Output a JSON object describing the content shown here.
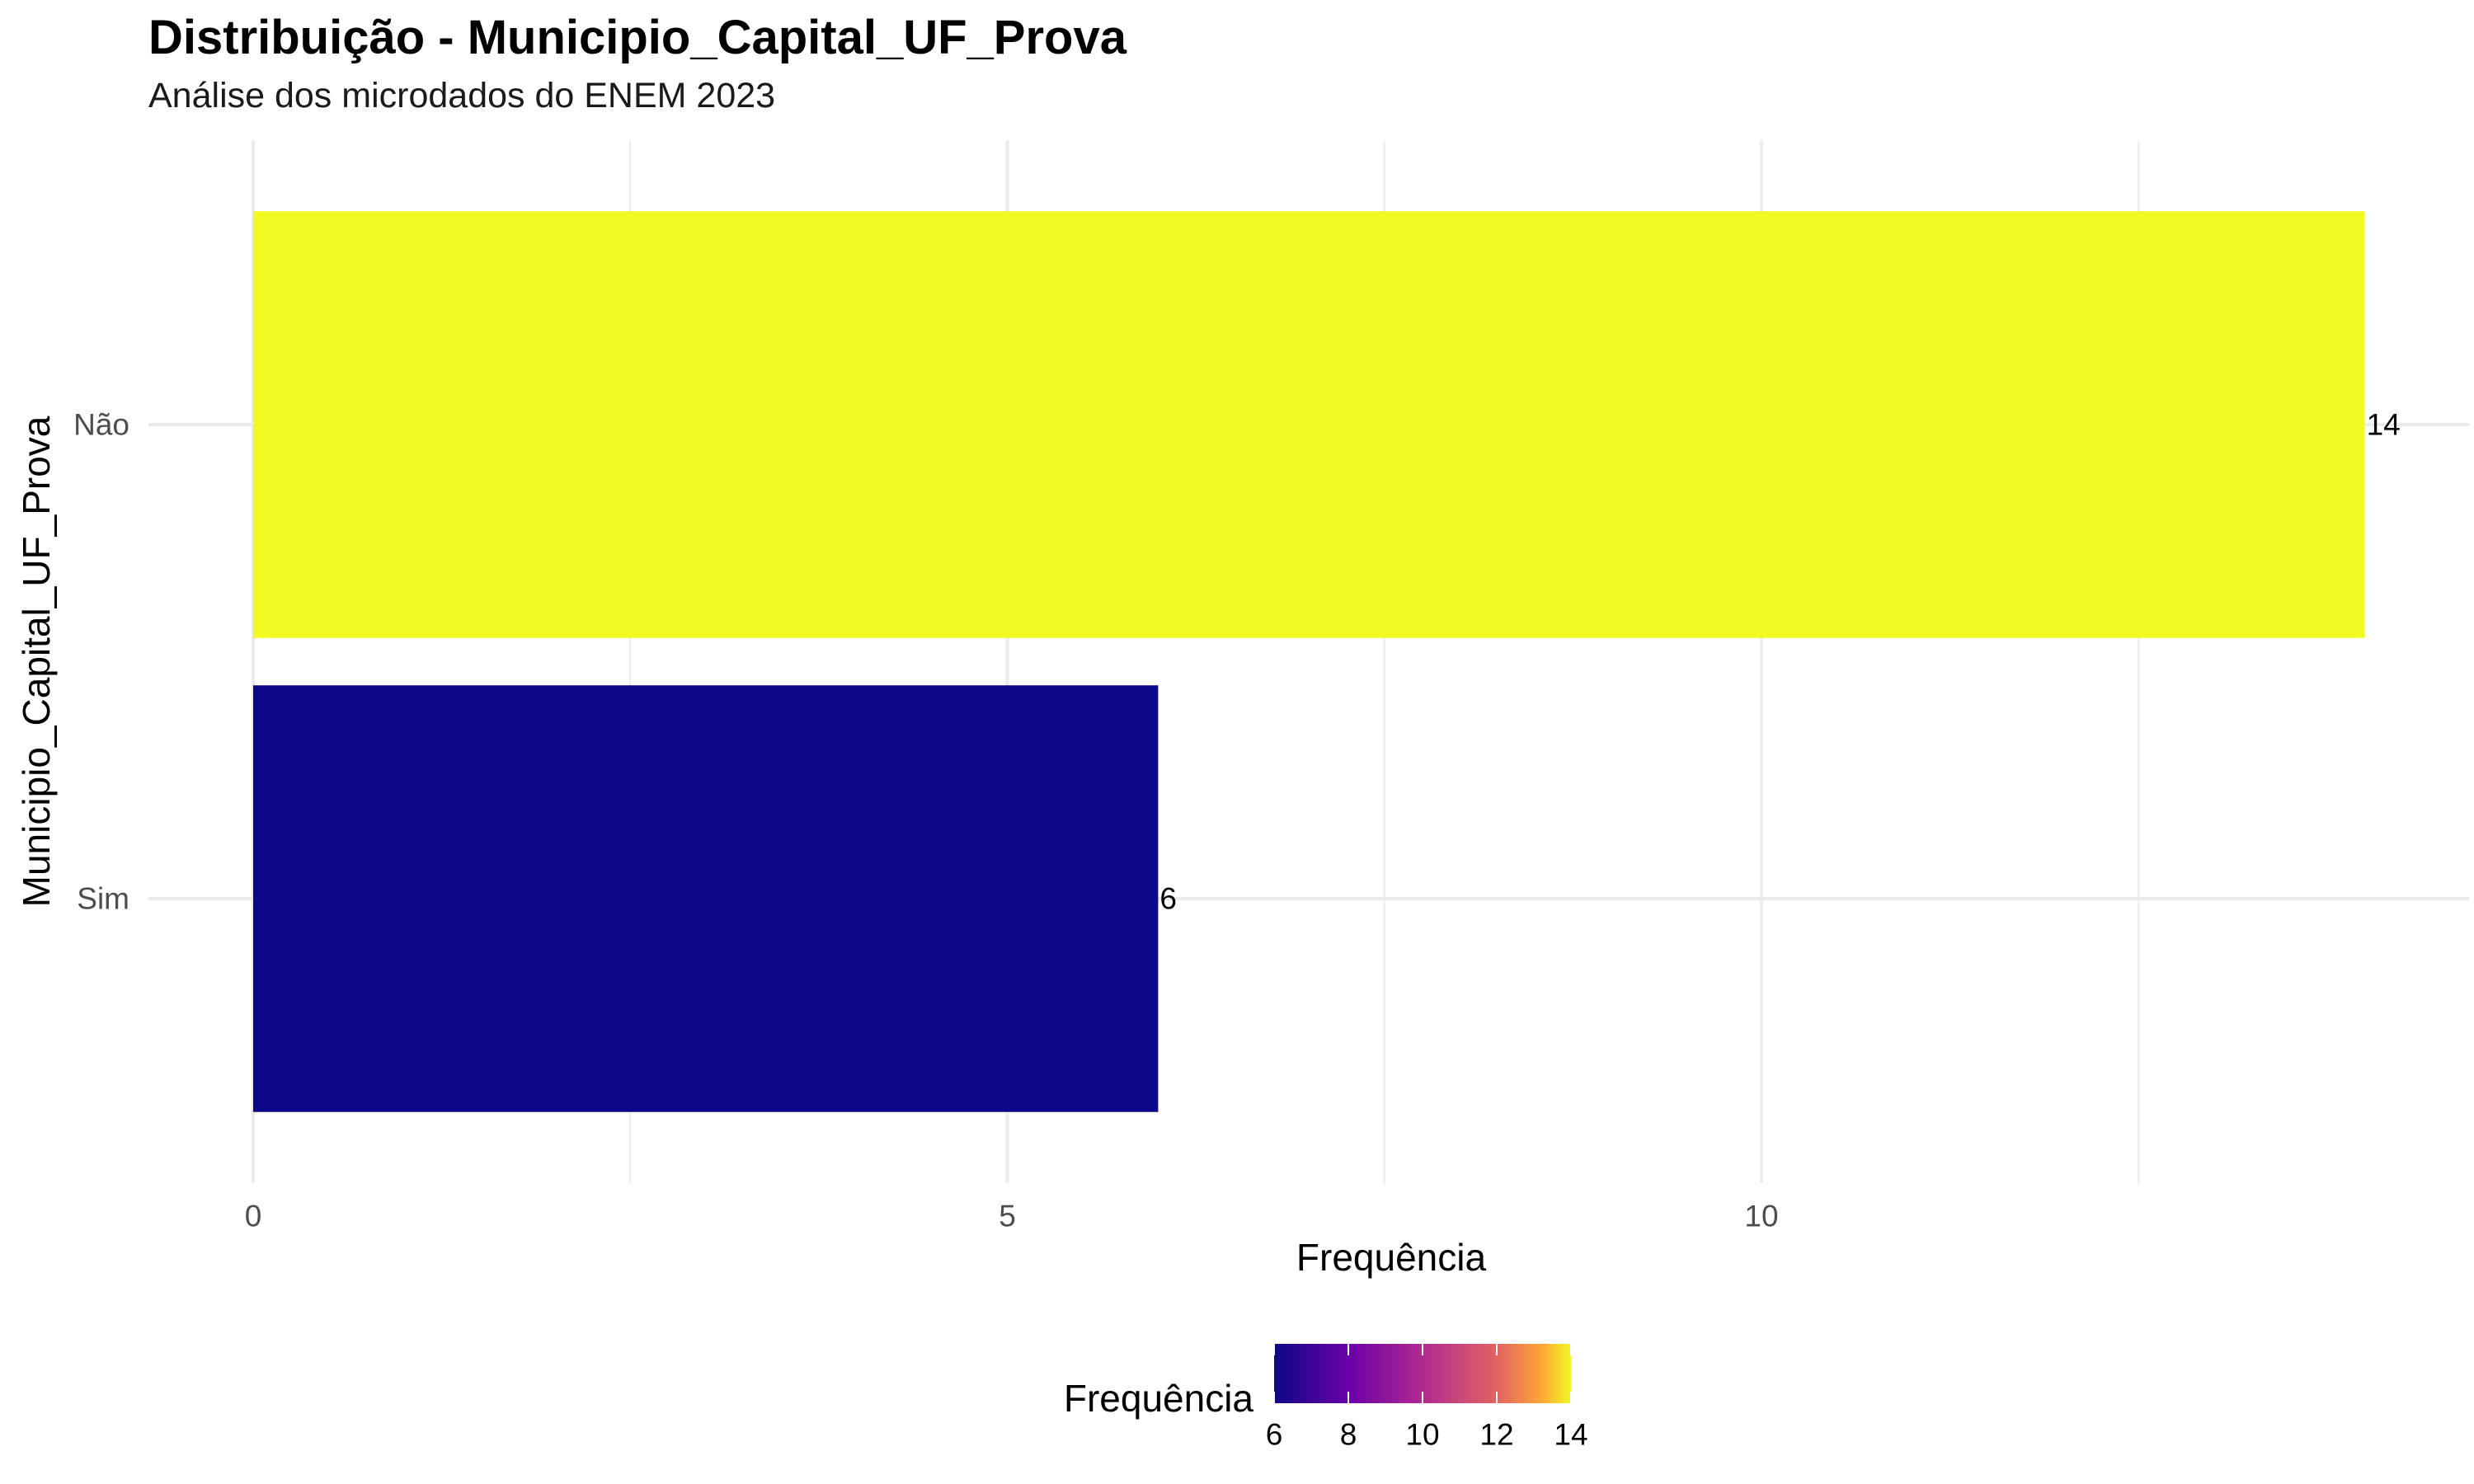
{
  "chart_data": {
    "type": "bar",
    "orientation": "horizontal",
    "title": "Distribuição - Municipio_Capital_UF_Prova",
    "subtitle": "Análise dos microdados do ENEM 2023",
    "xlabel": "Frequência",
    "ylabel": "Municipio_Capital_UF_Prova",
    "categories": [
      "Não",
      "Sim"
    ],
    "values": [
      14,
      6
    ],
    "data_labels": [
      "14",
      "6"
    ],
    "xlim": [
      0,
      14.7
    ],
    "x_ticks": [
      0,
      5,
      10
    ],
    "x_tick_labels": [
      "0",
      "5",
      "10"
    ],
    "grid": true,
    "legend": {
      "title": "Frequência",
      "position": "bottom",
      "type": "colorbar",
      "range": [
        6,
        14
      ],
      "ticks": [
        6,
        8,
        10,
        12,
        14
      ],
      "tick_labels": [
        "6",
        "8",
        "10",
        "12",
        "14"
      ],
      "colormap": "plasma"
    },
    "colors": {
      "low": "#0d0887",
      "high": "#f0f921",
      "grid": "#ebebeb",
      "tick_text": "#4d4d4d"
    }
  }
}
